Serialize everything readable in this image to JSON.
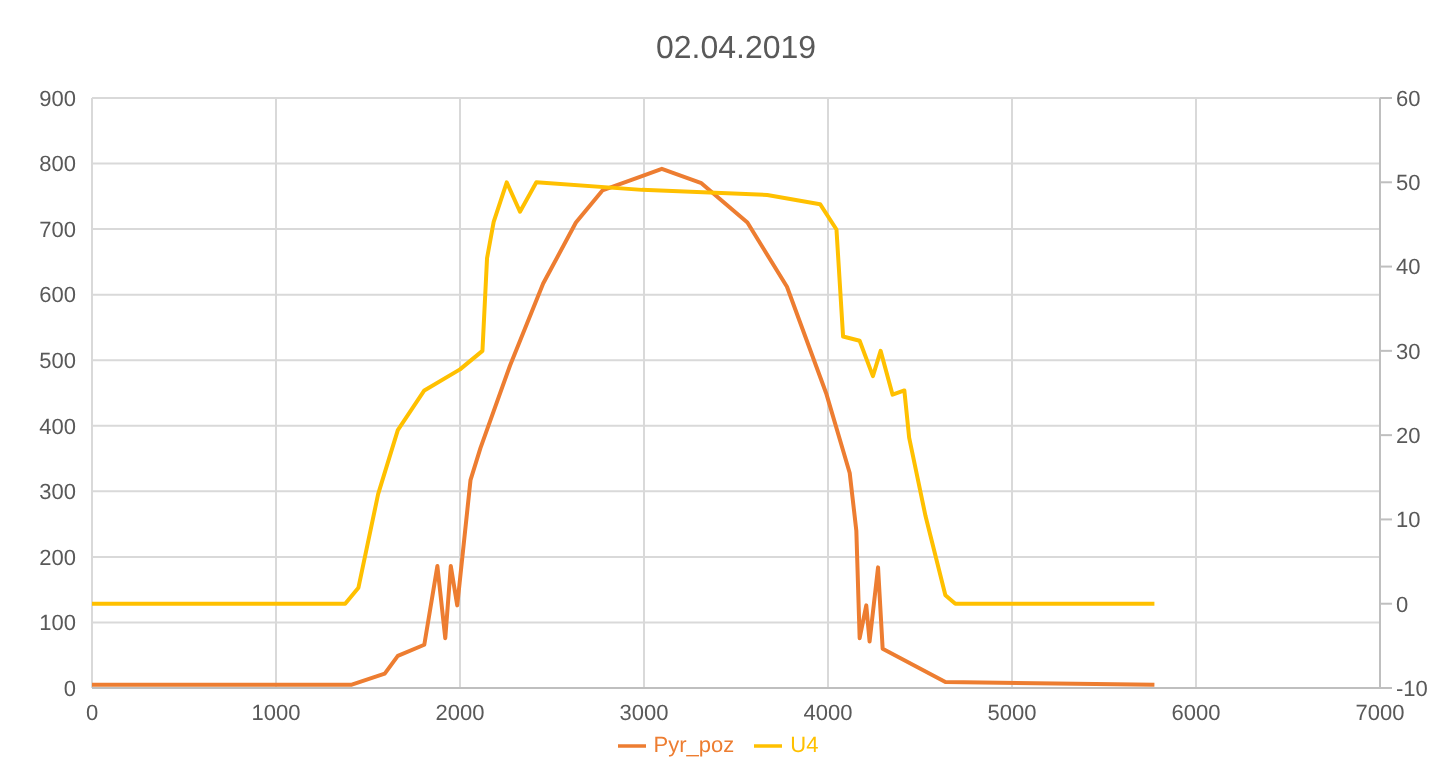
{
  "chart_data": {
    "type": "line",
    "title": "02.04.2019",
    "xlim": [
      0,
      7000
    ],
    "xticks": [
      0,
      1000,
      2000,
      3000,
      4000,
      5000,
      6000,
      7000
    ],
    "ylim": [
      0,
      900
    ],
    "yticks": [
      0,
      100,
      200,
      300,
      400,
      500,
      600,
      700,
      800,
      900
    ],
    "y2lim": [
      -10,
      60
    ],
    "y2ticks": [
      -10,
      0,
      10,
      20,
      30,
      40,
      50,
      60
    ],
    "grid": true,
    "legend": "bottom",
    "marker": "none",
    "series": [
      {
        "name": "Pyr_poz",
        "color": "#ed7d31",
        "x": [
          0,
          1412,
          1591,
          1662,
          1806,
          1877,
          1920,
          1950,
          1985,
          2057,
          2111,
          2272,
          2452,
          2630,
          2774,
          2989,
          3097,
          3312,
          3562,
          3777,
          3992,
          4118,
          4154,
          4172,
          4208,
          4226,
          4272,
          4297,
          4638,
          5774
        ],
        "values": [
          5,
          5,
          22,
          49,
          66,
          186,
          76,
          186,
          126,
          317,
          366,
          492,
          617,
          710,
          759,
          781,
          792,
          770,
          710,
          612,
          448,
          328,
          240,
          76,
          126,
          71,
          184,
          60,
          9,
          5
        ]
      },
      {
        "name": "U4",
        "color": "#ffc000",
        "axis": "y2",
        "x": [
          0,
          1376,
          1448,
          1555,
          1662,
          1806,
          2000,
          2122,
          2147,
          2183,
          2254,
          2326,
          2415,
          2989,
          3670,
          3957,
          4046,
          4082,
          4172,
          4244,
          4286,
          4351,
          4415,
          4441,
          4530,
          4638,
          4692,
          5774
        ],
        "values": [
          0,
          0,
          1.9,
          13,
          20.6,
          25.3,
          27.8,
          30,
          41,
          45.3,
          50,
          46.5,
          50,
          49.1,
          48.5,
          47.4,
          44.4,
          31.7,
          31.2,
          27,
          30,
          24.8,
          25.3,
          19.7,
          10.4,
          1,
          0,
          0
        ]
      }
    ]
  }
}
